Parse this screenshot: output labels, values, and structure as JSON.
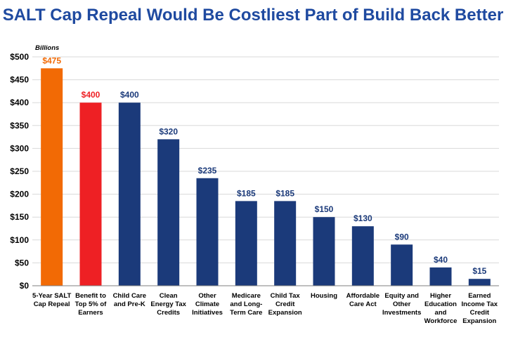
{
  "title": "SALT Cap Repeal Would Be Costliest Part of Build Back Better",
  "chart_data": {
    "type": "bar",
    "title": "SALT Cap Repeal Would Be Costliest Part of Build Back Better",
    "ylabel": "Billions",
    "xlabel": "",
    "ylim": [
      0,
      500
    ],
    "yticks": [
      0,
      50,
      100,
      150,
      200,
      250,
      300,
      350,
      400,
      450,
      500
    ],
    "ytick_labels": [
      "$0",
      "$50",
      "$100",
      "$150",
      "$200",
      "$250",
      "$300",
      "$350",
      "$400",
      "$450",
      "$500"
    ],
    "grid": true,
    "categories": [
      [
        "5-Year SALT",
        "Cap Repeal"
      ],
      [
        "Benefit to",
        "Top 5% of",
        "Earners"
      ],
      [
        "Child Care",
        "and Pre-K"
      ],
      [
        "Clean",
        "Energy Tax",
        "Credits"
      ],
      [
        "Other",
        "Climate",
        "Initiatives"
      ],
      [
        "Medicare",
        "and Long-",
        "Term Care"
      ],
      [
        "Child Tax",
        "Credit",
        "Expansion"
      ],
      [
        "Housing"
      ],
      [
        "Affordable",
        "Care Act"
      ],
      [
        "Equity and",
        "Other",
        "Investments"
      ],
      [
        "Higher",
        "Education",
        "and",
        "Workforce"
      ],
      [
        "Earned",
        "Income Tax",
        "Credit",
        "Expansion"
      ]
    ],
    "values": [
      475,
      400,
      400,
      320,
      235,
      185,
      185,
      150,
      130,
      90,
      40,
      15
    ],
    "data_labels": [
      "$475",
      "$400",
      "$400",
      "$320",
      "$235",
      "$185",
      "$185",
      "$150",
      "$130",
      "$90",
      "$40",
      "$15"
    ],
    "bar_colors": [
      "#f26a05",
      "#ee2024",
      "#1b3a7a",
      "#1b3a7a",
      "#1b3a7a",
      "#1b3a7a",
      "#1b3a7a",
      "#1b3a7a",
      "#1b3a7a",
      "#1b3a7a",
      "#1b3a7a",
      "#1b3a7a"
    ],
    "label_colors": [
      "#f26a05",
      "#ee2024",
      "#1b3a7a",
      "#1b3a7a",
      "#1b3a7a",
      "#1b3a7a",
      "#1b3a7a",
      "#1b3a7a",
      "#1b3a7a",
      "#1b3a7a",
      "#1b3a7a",
      "#1b3a7a"
    ]
  },
  "colors": {
    "title": "#1f4aa0",
    "grid": "#d9d9d9",
    "axis": "#7f7f7f"
  }
}
